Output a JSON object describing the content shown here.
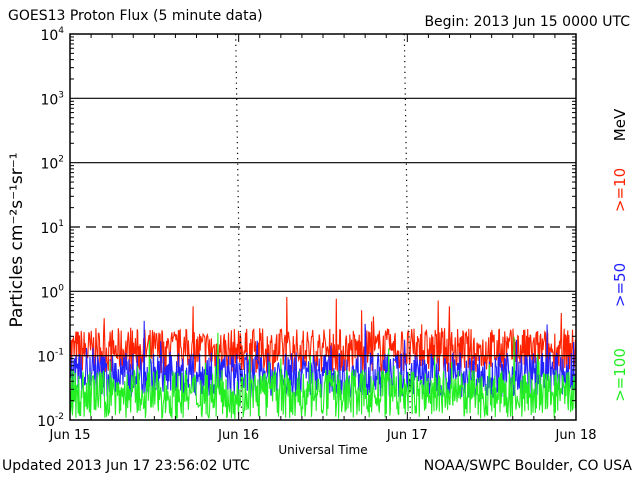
{
  "header": {
    "title": "GOES13 Proton Flux (5 minute data)",
    "begin": "Begin: 2013 Jun 15 0000 UTC"
  },
  "footer": {
    "updated": "Updated 2013 Jun 17 23:56:02 UTC",
    "credit": "NOAA/SWPC Boulder, CO USA"
  },
  "chart_data": {
    "type": "line",
    "title": "GOES13 Proton Flux (5 minute data)",
    "xlabel": "Universal Time",
    "ylabel": "Particles cm⁻²s⁻¹sr⁻¹",
    "y_scale": "log",
    "ylim": [
      0.01,
      10000
    ],
    "y_ticks": [
      {
        "value": 0.01,
        "base": "10",
        "exp": "-2"
      },
      {
        "value": 0.1,
        "base": "10",
        "exp": "-1"
      },
      {
        "value": 1,
        "base": "10",
        "exp": "0"
      },
      {
        "value": 10,
        "base": "10",
        "exp": "1"
      },
      {
        "value": 100,
        "base": "10",
        "exp": "2"
      },
      {
        "value": 1000,
        "base": "10",
        "exp": "3"
      },
      {
        "value": 10000,
        "base": "10",
        "exp": "4"
      }
    ],
    "x_ticks": [
      "Jun 15",
      "Jun 16",
      "Jun 17",
      "Jun 18"
    ],
    "xlim": [
      0,
      3
    ],
    "grid": true,
    "unit_label": "MeV",
    "colors": {
      "p10": "#ff2200",
      "p50": "#2222ff",
      "p100": "#22ee22"
    },
    "series": [
      {
        "name": ">=10",
        "color": "#ff2200",
        "base": 0.12,
        "spread": 0.35
      },
      {
        "name": ">=50",
        "color": "#2222ff",
        "base": 0.05,
        "spread": 0.35
      },
      {
        "name": ">=100",
        "color": "#22ee22",
        "base": 0.025,
        "spread": 0.38
      }
    ],
    "alert_lines": [
      {
        "value": 10,
        "style": "dashed"
      }
    ]
  }
}
